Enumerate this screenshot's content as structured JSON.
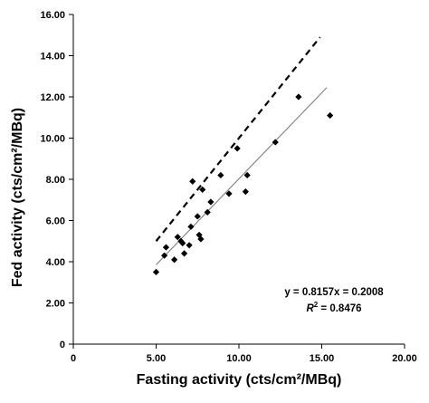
{
  "chart_data": {
    "type": "scatter",
    "xlabel": "Fasting activity (cts/cm²/MBq)",
    "ylabel": "Fed activity (cts/cm²/MBq)",
    "xlim": [
      0,
      20
    ],
    "ylim": [
      0,
      16
    ],
    "xticks": [
      0,
      5,
      10,
      15,
      20
    ],
    "yticks": [
      0,
      2,
      4,
      6,
      8,
      10,
      12,
      14,
      16
    ],
    "xtick_labels": [
      "0",
      "5.00",
      "10.00",
      "15.00",
      "20.00"
    ],
    "ytick_labels": [
      "0",
      "2.00",
      "4.00",
      "6.00",
      "8.00",
      "10.00",
      "12.00",
      "14.00",
      "16.00"
    ],
    "grid": false,
    "points": [
      {
        "x": 5.0,
        "y": 3.5
      },
      {
        "x": 5.5,
        "y": 4.3
      },
      {
        "x": 5.6,
        "y": 4.7
      },
      {
        "x": 6.1,
        "y": 4.1
      },
      {
        "x": 6.3,
        "y": 5.2
      },
      {
        "x": 6.5,
        "y": 5.0
      },
      {
        "x": 6.6,
        "y": 4.9
      },
      {
        "x": 6.7,
        "y": 4.4
      },
      {
        "x": 7.0,
        "y": 4.8
      },
      {
        "x": 7.1,
        "y": 5.7
      },
      {
        "x": 7.2,
        "y": 7.9
      },
      {
        "x": 7.5,
        "y": 6.2
      },
      {
        "x": 7.6,
        "y": 5.3
      },
      {
        "x": 7.7,
        "y": 5.1
      },
      {
        "x": 7.8,
        "y": 7.5
      },
      {
        "x": 8.1,
        "y": 6.4
      },
      {
        "x": 8.3,
        "y": 6.9
      },
      {
        "x": 8.9,
        "y": 8.2
      },
      {
        "x": 9.4,
        "y": 7.3
      },
      {
        "x": 9.9,
        "y": 9.5
      },
      {
        "x": 10.4,
        "y": 7.4
      },
      {
        "x": 10.5,
        "y": 8.2
      },
      {
        "x": 12.2,
        "y": 9.8
      },
      {
        "x": 13.6,
        "y": 12.0
      },
      {
        "x": 15.5,
        "y": 11.1
      }
    ],
    "regression_line": {
      "x": [
        5.0,
        15.3
      ],
      "y": [
        3.85,
        12.45
      ],
      "style": "solid",
      "color": "#808080"
    },
    "identity_line": {
      "x": [
        5.0,
        14.9
      ],
      "y": [
        5.0,
        14.9
      ],
      "style": "dashed",
      "color": "#000000"
    },
    "annotations": {
      "equation": "y = 0.8157x = 0.2008",
      "r2_prefix": "R",
      "r2_sup": "2",
      "r2_suffix": " = 0.8476"
    }
  }
}
